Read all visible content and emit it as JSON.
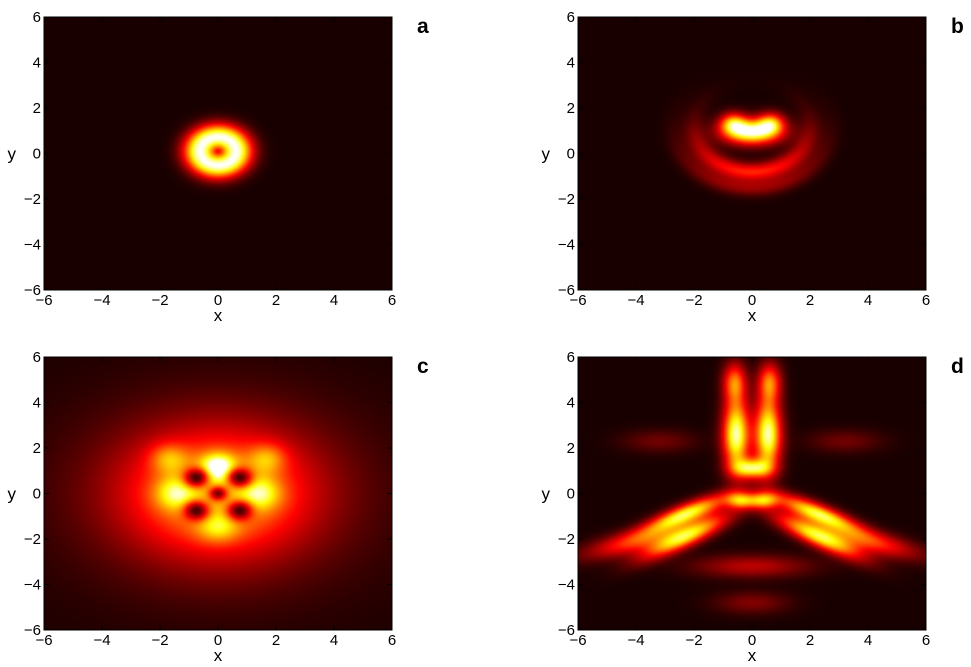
{
  "chart_data": [
    {
      "panel": "a",
      "type": "heatmap",
      "xlabel": "x",
      "ylabel": "y",
      "xlim": [
        -6,
        6
      ],
      "ylim": [
        -6,
        6
      ],
      "xticks": [
        "−6",
        "−4",
        "−2",
        "0",
        "2",
        "4",
        "6"
      ],
      "yticks": [
        "−6",
        "−4",
        "−2",
        "0",
        "2",
        "4",
        "6"
      ],
      "colormap": "hot",
      "grid": false,
      "features": [
        {
          "shape": "ring",
          "cx": 0.0,
          "cy": 0.1,
          "r": 0.62,
          "w": 0.42,
          "amp": 1.0
        }
      ]
    },
    {
      "panel": "b",
      "type": "heatmap",
      "xlabel": "x",
      "ylabel": "y",
      "xlim": [
        -6,
        6
      ],
      "ylim": [
        -6,
        6
      ],
      "xticks": [
        "−6",
        "−4",
        "−2",
        "0",
        "2",
        "4",
        "6"
      ],
      "yticks": [
        "−6",
        "−4",
        "−2",
        "0",
        "2",
        "4",
        "6"
      ],
      "colormap": "hot",
      "grid": false,
      "features": [
        {
          "shape": "gauss",
          "cx": 0.0,
          "cy": 0.95,
          "sx": 0.7,
          "sy": 0.38,
          "amp": 1.0
        },
        {
          "shape": "gauss",
          "cx": -0.65,
          "cy": 1.35,
          "sx": 0.32,
          "sy": 0.32,
          "amp": 0.55
        },
        {
          "shape": "gauss",
          "cx": 0.65,
          "cy": 1.35,
          "sx": 0.32,
          "sy": 0.32,
          "amp": 0.55
        },
        {
          "shape": "arc",
          "cx": 0.0,
          "cy": 1.2,
          "r": 2.0,
          "w": 0.28,
          "amp": 0.45,
          "dir": -90,
          "spread": 58
        },
        {
          "shape": "arc",
          "cx": 0.0,
          "cy": 1.2,
          "r": 2.7,
          "w": 0.26,
          "amp": 0.22,
          "dir": -90,
          "spread": 50
        }
      ]
    },
    {
      "panel": "c",
      "type": "heatmap",
      "xlabel": "x",
      "ylabel": "y",
      "xlim": [
        -6,
        6
      ],
      "ylim": [
        -6,
        6
      ],
      "xticks": [
        "−6",
        "−4",
        "−2",
        "0",
        "2",
        "4",
        "6"
      ],
      "yticks": [
        "−6",
        "−4",
        "−2",
        "0",
        "2",
        "4",
        "6"
      ],
      "colormap": "hot",
      "grid": false,
      "features": [
        {
          "shape": "gauss",
          "cx": 0.0,
          "cy": 0.0,
          "sx": 2.3,
          "sy": 2.0,
          "amp": 0.62
        },
        {
          "shape": "gauss",
          "cx": 0.0,
          "cy": 0.0,
          "sx": 4.5,
          "sy": 3.5,
          "amp": 0.12
        },
        {
          "shape": "gauss",
          "cx": 0.0,
          "cy": 1.15,
          "sx": 0.42,
          "sy": 0.42,
          "amp": 0.55
        },
        {
          "shape": "gauss",
          "cx": -1.45,
          "cy": 0.0,
          "sx": 0.5,
          "sy": 0.5,
          "amp": 0.35
        },
        {
          "shape": "gauss",
          "cx": 1.45,
          "cy": 0.0,
          "sx": 0.5,
          "sy": 0.5,
          "amp": 0.35
        },
        {
          "shape": "gauss",
          "cx": 0.0,
          "cy": -1.5,
          "sx": 0.5,
          "sy": 0.45,
          "amp": 0.28
        },
        {
          "shape": "gauss",
          "cx": -1.7,
          "cy": 1.55,
          "sx": 0.45,
          "sy": 0.45,
          "amp": 0.28
        },
        {
          "shape": "gauss",
          "cx": 1.7,
          "cy": 1.55,
          "sx": 0.45,
          "sy": 0.45,
          "amp": 0.28
        },
        {
          "shape": "dark",
          "cx": -0.75,
          "cy": 0.7,
          "s": 0.3,
          "amp": 0.9
        },
        {
          "shape": "dark",
          "cx": 0.75,
          "cy": 0.7,
          "s": 0.3,
          "amp": 0.9
        },
        {
          "shape": "dark",
          "cx": -0.75,
          "cy": -0.75,
          "s": 0.3,
          "amp": 0.9
        },
        {
          "shape": "dark",
          "cx": 0.75,
          "cy": -0.75,
          "s": 0.3,
          "amp": 0.9
        },
        {
          "shape": "dark",
          "cx": 0.0,
          "cy": 0.0,
          "s": 0.22,
          "amp": 0.8
        }
      ]
    },
    {
      "panel": "d",
      "type": "heatmap",
      "xlabel": "x",
      "ylabel": "y",
      "xlim": [
        -6,
        6
      ],
      "ylim": [
        -6,
        6
      ],
      "xticks": [
        "−6",
        "−4",
        "−2",
        "0",
        "2",
        "4",
        "6"
      ],
      "yticks": [
        "−6",
        "−4",
        "−2",
        "0",
        "2",
        "4",
        "6"
      ],
      "colormap": "hot",
      "grid": false,
      "features": [
        {
          "shape": "gauss",
          "cx": -0.55,
          "cy": 2.6,
          "sx": 0.32,
          "sy": 1.1,
          "amp": 0.95
        },
        {
          "shape": "gauss",
          "cx": 0.55,
          "cy": 2.6,
          "sx": 0.32,
          "sy": 1.1,
          "amp": 0.95
        },
        {
          "shape": "gauss",
          "cx": 0.0,
          "cy": 1.1,
          "sx": 0.45,
          "sy": 0.3,
          "amp": 0.75
        },
        {
          "shape": "gauss",
          "cx": -0.6,
          "cy": 4.9,
          "sx": 0.28,
          "sy": 0.6,
          "amp": 0.55
        },
        {
          "shape": "gauss",
          "cx": 0.6,
          "cy": 4.9,
          "sx": 0.28,
          "sy": 0.6,
          "amp": 0.55
        },
        {
          "shape": "rotgauss",
          "cx": -2.3,
          "cy": -0.9,
          "sl": 1.1,
          "sw": 0.28,
          "angle": 28,
          "amp": 0.85
        },
        {
          "shape": "rotgauss",
          "cx": 2.3,
          "cy": -0.9,
          "sl": 1.1,
          "sw": 0.28,
          "angle": -28,
          "amp": 0.85
        },
        {
          "shape": "rotgauss",
          "cx": -2.3,
          "cy": -1.9,
          "sl": 1.2,
          "sw": 0.3,
          "angle": 32,
          "amp": 0.75
        },
        {
          "shape": "rotgauss",
          "cx": 2.3,
          "cy": -1.9,
          "sl": 1.2,
          "sw": 0.3,
          "angle": -32,
          "amp": 0.75
        },
        {
          "shape": "rotgauss",
          "cx": -4.0,
          "cy": -2.1,
          "sl": 1.3,
          "sw": 0.35,
          "angle": 18,
          "amp": 0.45
        },
        {
          "shape": "rotgauss",
          "cx": 4.0,
          "cy": -2.1,
          "sl": 1.3,
          "sw": 0.35,
          "angle": -18,
          "amp": 0.45
        },
        {
          "shape": "gauss",
          "cx": -0.4,
          "cy": -0.3,
          "sx": 0.35,
          "sy": 0.25,
          "amp": 0.6
        },
        {
          "shape": "gauss",
          "cx": 0.4,
          "cy": -0.3,
          "sx": 0.35,
          "sy": 0.25,
          "amp": 0.6
        },
        {
          "shape": "gauss",
          "cx": 0.0,
          "cy": -3.2,
          "sx": 1.4,
          "sy": 0.35,
          "amp": 0.28
        },
        {
          "shape": "gauss",
          "cx": 0.0,
          "cy": -4.8,
          "sx": 0.9,
          "sy": 0.35,
          "amp": 0.18
        },
        {
          "shape": "gauss",
          "cx": -3.2,
          "cy": 2.3,
          "sx": 0.9,
          "sy": 0.35,
          "amp": 0.15
        },
        {
          "shape": "gauss",
          "cx": 3.2,
          "cy": 2.3,
          "sx": 0.9,
          "sy": 0.35,
          "amp": 0.15
        }
      ]
    }
  ]
}
